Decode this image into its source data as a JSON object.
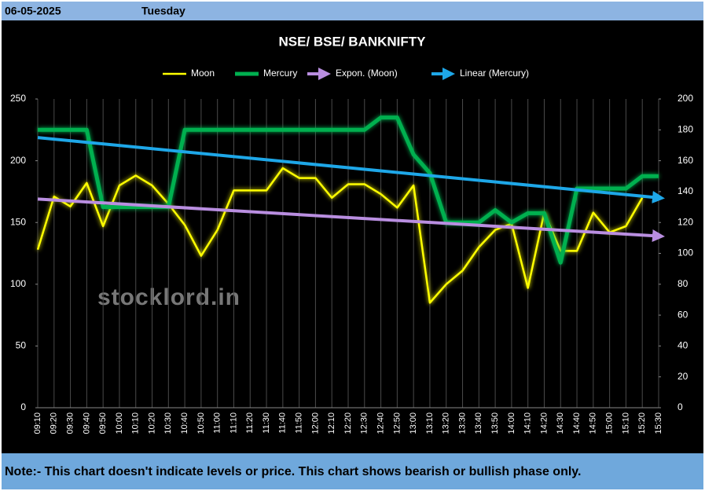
{
  "header": {
    "date": "06-05-2025",
    "day": "Tuesday"
  },
  "chart_data": {
    "type": "line",
    "title": "NSE/ BSE/ BANKNIFTY",
    "watermark": "stocklord.in",
    "categories": [
      "09:10",
      "09:20",
      "09:30",
      "09:40",
      "09:50",
      "10:00",
      "10:10",
      "10:20",
      "10:30",
      "10:40",
      "10:50",
      "11:00",
      "11:10",
      "11:20",
      "11:30",
      "11:40",
      "11:50",
      "12:00",
      "12:10",
      "12:20",
      "12:30",
      "12:40",
      "12:50",
      "13:00",
      "13:10",
      "13:20",
      "13:30",
      "13:40",
      "13:50",
      "14:00",
      "14:10",
      "14:20",
      "14:30",
      "14:40",
      "14:50",
      "15:00",
      "15:10",
      "15:20",
      "15:30"
    ],
    "series": [
      {
        "name": "Moon",
        "color": "#ffff00",
        "axis": "y",
        "values": [
          128,
          171,
          163,
          182,
          147,
          180,
          188,
          180,
          165,
          148,
          123,
          144,
          176,
          176,
          176,
          194,
          186,
          186,
          170,
          181,
          181,
          173,
          162,
          180,
          85,
          100,
          111,
          130,
          144,
          149,
          97,
          158,
          127,
          127,
          158,
          142,
          147,
          170,
          null
        ]
      },
      {
        "name": "Mercury",
        "color": "#00b050",
        "axis": "y2",
        "values": [
          180,
          180,
          180,
          180,
          130,
          130,
          130,
          130,
          130,
          180,
          180,
          180,
          180,
          180,
          180,
          180,
          180,
          180,
          180,
          180,
          180,
          188,
          188,
          164,
          152,
          120,
          120,
          120,
          128,
          120,
          126,
          126,
          94,
          142,
          142,
          142,
          142,
          150,
          150
        ]
      }
    ],
    "trendlines": [
      {
        "name": "Expon. (Moon)",
        "color": "#b98ee0",
        "axis": "y",
        "values": [
          169,
          139
        ]
      },
      {
        "name": "Linear (Mercury)",
        "color": "#1ea7e8",
        "axis": "y2",
        "values": [
          175,
          136
        ]
      }
    ],
    "ylim": [
      0,
      250
    ],
    "yticks": [
      0,
      50,
      100,
      150,
      200,
      250
    ],
    "y2lim": [
      0,
      200
    ],
    "y2ticks": [
      0,
      20,
      40,
      60,
      80,
      100,
      120,
      140,
      160,
      180,
      200
    ],
    "grid": "x"
  },
  "footer": {
    "note": "Note:- This chart doesn't indicate levels or price. This chart shows bearish or bullish phase only."
  }
}
